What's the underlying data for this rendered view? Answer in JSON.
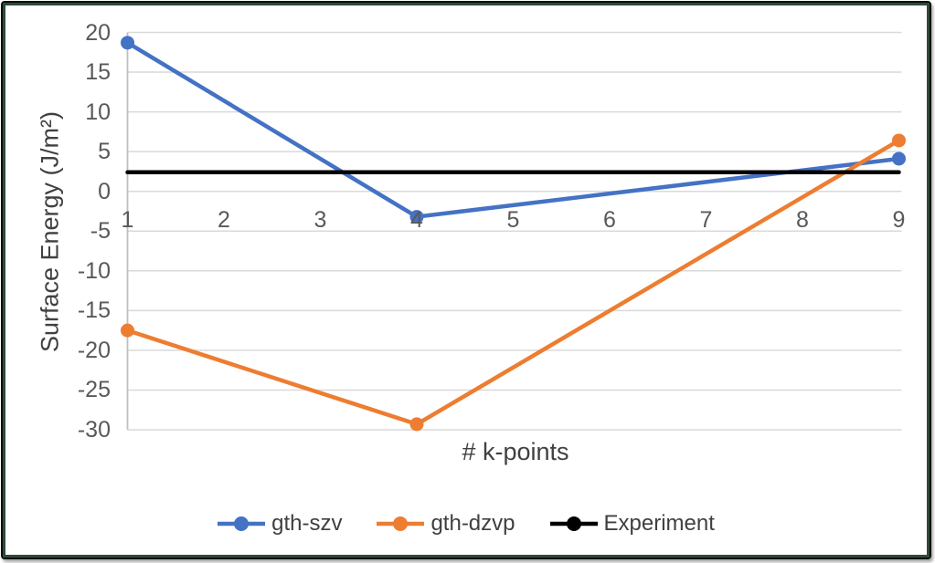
{
  "frame": {
    "outer_border_color": "#0c0f0c",
    "inner_border_color": "#2e4b35",
    "background": "#ffffff"
  },
  "chart_data": {
    "type": "line",
    "x": [
      1,
      4,
      9
    ],
    "series": [
      {
        "name": "gth-szv",
        "color": "#4472C4",
        "values": [
          18.7,
          -3.2,
          4.1
        ],
        "markers": true
      },
      {
        "name": "gth-dzvp",
        "color": "#ED7D31",
        "values": [
          -17.5,
          -29.3,
          6.4
        ],
        "markers": true
      },
      {
        "name": "Experiment",
        "color": "#000000",
        "values": [
          2.4,
          2.4,
          2.4
        ],
        "markers": false
      }
    ],
    "title": "",
    "xlabel": "# k-points",
    "ylabel": "Surface Energy (J/m²)",
    "xticks": [
      1,
      2,
      3,
      4,
      5,
      6,
      7,
      8,
      9
    ],
    "yticks": [
      20,
      15,
      10,
      5,
      0,
      -5,
      -10,
      -15,
      -20,
      -25,
      -30
    ],
    "xlim": [
      1,
      9
    ],
    "ylim": [
      -30,
      20
    ],
    "grid": true,
    "gridline_color": "#D9D9D9",
    "axis_line_color": "#BFBFBF",
    "tick_label_color": "#595959",
    "axis_title_color": "#404040",
    "legend_text_color": "#404040",
    "legend_position": "bottom"
  }
}
